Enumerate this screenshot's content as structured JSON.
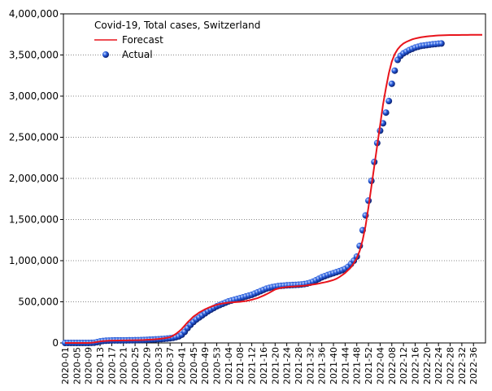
{
  "chart_data": {
    "type": "line",
    "title": "Covid-19, Total cases, Switzerland",
    "categories": [
      "2020-01",
      null,
      null,
      null,
      "2020-05",
      null,
      null,
      null,
      "2020-09",
      null,
      null,
      null,
      "2020-13",
      null,
      null,
      null,
      "2020-17",
      null,
      null,
      null,
      "2020-21",
      null,
      null,
      null,
      "2020-25",
      null,
      null,
      null,
      "2020-29",
      null,
      null,
      null,
      "2020-33",
      null,
      null,
      null,
      "2020-37",
      null,
      null,
      null,
      "2020-41",
      null,
      null,
      null,
      "2020-45",
      null,
      null,
      null,
      "2020-49",
      null,
      null,
      null,
      "2020-53",
      null,
      null,
      null,
      "2021-04",
      null,
      null,
      null,
      "2021-08",
      null,
      null,
      null,
      "2021-12",
      null,
      null,
      null,
      "2021-16",
      null,
      null,
      null,
      "2021-20",
      null,
      null,
      null,
      "2021-24",
      null,
      null,
      null,
      "2021-28",
      null,
      null,
      null,
      "2021-32",
      null,
      null,
      null,
      "2021-36",
      null,
      null,
      null,
      "2021-40",
      null,
      null,
      null,
      "2021-44",
      null,
      null,
      null,
      "2021-48",
      null,
      null,
      null,
      "2021-52",
      null,
      null,
      null,
      "2022-04",
      null,
      null,
      null,
      "2022-08",
      null,
      null,
      null,
      "2022-12",
      null,
      null,
      null,
      "2022-16",
      null,
      null,
      null,
      "2022-20",
      null,
      null,
      null,
      "2022-24",
      null,
      null,
      null,
      "2022-28",
      null,
      null,
      null,
      "2022-32",
      null,
      null,
      null,
      "2022-36",
      null,
      null,
      null
    ],
    "series": [
      {
        "name": "Forecast",
        "color": "#e8141c",
        "marker": "line",
        "values": [
          0,
          0,
          0,
          0,
          0,
          0,
          0,
          0,
          0,
          2000,
          6000,
          12000,
          18000,
          22000,
          25000,
          27000,
          28000,
          29000,
          30000,
          30000,
          31000,
          31000,
          32000,
          32000,
          33000,
          34000,
          35000,
          36000,
          38000,
          40000,
          42000,
          45000,
          48000,
          52000,
          57000,
          63000,
          70000,
          88000,
          110000,
          138000,
          170000,
          210000,
          250000,
          285000,
          320000,
          345000,
          370000,
          390000,
          410000,
          425000,
          440000,
          453000,
          465000,
          473000,
          480000,
          485000,
          490000,
          493000,
          495000,
          498000,
          500000,
          505000,
          510000,
          517000,
          525000,
          535000,
          545000,
          560000,
          575000,
          592000,
          610000,
          630000,
          650000,
          660000,
          670000,
          675000,
          680000,
          683000,
          685000,
          688000,
          690000,
          693000,
          695000,
          700000,
          705000,
          710000,
          715000,
          722000,
          730000,
          737000,
          745000,
          755000,
          765000,
          780000,
          800000,
          825000,
          850000,
          885000,
          920000,
          970000,
          1030000,
          1120000,
          1250000,
          1420000,
          1650000,
          1900000,
          2150000,
          2400000,
          2650000,
          2900000,
          3100000,
          3280000,
          3420000,
          3510000,
          3570000,
          3610000,
          3640000,
          3660000,
          3675000,
          3690000,
          3700000,
          3708000,
          3715000,
          3720000,
          3725000,
          3729000,
          3732000,
          3735000,
          3737000,
          3739000,
          3740000,
          3741000,
          3742000,
          3742000,
          3743000,
          3743000,
          3744000,
          3744000,
          3744000,
          3745000,
          3745000,
          3745000,
          3745000,
          3745000
        ]
      },
      {
        "name": "Actual",
        "color": "#1f4fd0",
        "marker": "dot",
        "values": [
          0,
          0,
          0,
          0,
          0,
          0,
          0,
          0,
          0,
          1000,
          3000,
          10000,
          18000,
          24000,
          27000,
          29000,
          30000,
          30500,
          31000,
          31000,
          31500,
          31500,
          32000,
          32500,
          33000,
          34000,
          35000,
          36000,
          37500,
          39000,
          41000,
          43000,
          45000,
          47000,
          50000,
          53000,
          57000,
          62000,
          70000,
          80000,
          100000,
          135000,
          180000,
          220000,
          255000,
          285000,
          310000,
          335000,
          360000,
          385000,
          405000,
          425000,
          445000,
          460000,
          475000,
          490000,
          505000,
          515000,
          525000,
          535000,
          545000,
          555000,
          565000,
          575000,
          585000,
          600000,
          615000,
          630000,
          645000,
          660000,
          670000,
          678000,
          685000,
          690000,
          694000,
          697000,
          700000,
          702000,
          704000,
          706000,
          708000,
          711000,
          715000,
          722000,
          732000,
          745000,
          762000,
          780000,
          798000,
          812000,
          825000,
          837000,
          848000,
          860000,
          872000,
          885000,
          900000,
          925000,
          960000,
          1000000,
          1050000,
          1180000,
          1370000,
          1550000,
          1730000,
          1970000,
          2200000,
          2430000,
          2580000,
          2670000,
          2800000,
          2940000,
          3150000,
          3310000,
          3440000,
          3490000,
          3520000,
          3540000,
          3560000,
          3575000,
          3590000,
          3600000,
          3610000,
          3615000,
          3620000,
          3625000,
          3630000,
          3633000,
          3637000,
          3640000,
          null,
          null,
          null,
          null,
          null,
          null,
          null,
          null,
          null,
          null,
          null,
          null,
          null,
          null
        ]
      }
    ],
    "ylim": [
      0,
      4000000
    ],
    "yticks": [
      0,
      {
        "value": 500000,
        "label": "500,000"
      },
      {
        "value": 1000000,
        "label": "1,000,000"
      },
      {
        "value": 1500000,
        "label": "1,500,000"
      },
      {
        "value": 2000000,
        "label": "2,000,000"
      },
      {
        "value": 2500000,
        "label": "2,500,000"
      },
      {
        "value": 3000000,
        "label": "3,000,000"
      },
      {
        "value": 3500000,
        "label": "3,500,000"
      },
      {
        "value": 4000000,
        "label": "4,000,000"
      }
    ],
    "grid": true,
    "legend": "upper left"
  }
}
